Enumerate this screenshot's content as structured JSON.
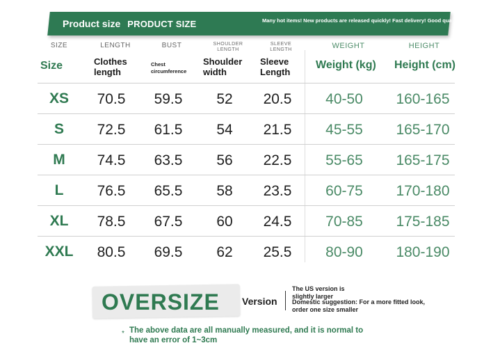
{
  "banner": {
    "title": "Product size",
    "subtitle": "PRODUCT SIZE",
    "note": "Many hot items! New products are released quickly! Fast delivery! Good quality! Keep improving!"
  },
  "columns": [
    {
      "en": "SIZE",
      "label": "Size"
    },
    {
      "en": "LENGTH",
      "label": "Clothes length"
    },
    {
      "en": "BUST",
      "label": "Chest circumference"
    },
    {
      "en": "SHOULDER LENGTH",
      "label": "Shoulder width"
    },
    {
      "en": "SLEEVE LENGTH",
      "label": "Sleeve Length"
    },
    {
      "en": "WEIGHT",
      "label": "Weight (kg)"
    },
    {
      "en": "HEIGHT",
      "label": "Height (cm)"
    }
  ],
  "rows": [
    {
      "size": "XS",
      "length": "70.5",
      "bust": "59.5",
      "shoulder": "52",
      "sleeve": "20.5",
      "weight": "40-50",
      "height": "160-165"
    },
    {
      "size": "S",
      "length": "72.5",
      "bust": "61.5",
      "shoulder": "54",
      "sleeve": "21.5",
      "weight": "45-55",
      "height": "165-170"
    },
    {
      "size": "M",
      "length": "74.5",
      "bust": "63.5",
      "shoulder": "56",
      "sleeve": "22.5",
      "weight": "55-65",
      "height": "165-175"
    },
    {
      "size": "L",
      "length": "76.5",
      "bust": "65.5",
      "shoulder": "58",
      "sleeve": "23.5",
      "weight": "60-75",
      "height": "170-180"
    },
    {
      "size": "XL",
      "length": "78.5",
      "bust": "67.5",
      "shoulder": "60",
      "sleeve": "24.5",
      "weight": "70-85",
      "height": "175-185"
    },
    {
      "size": "XXL",
      "length": "80.5",
      "bust": "69.5",
      "shoulder": "62",
      "sleeve": "25.5",
      "weight": "80-90",
      "height": "180-190"
    }
  ],
  "bottom": {
    "oversize": "OVERSIZE",
    "version": "Version",
    "us_note": "The US version is slightly larger",
    "suggestion": "Domestic suggestion: For a more fitted look, order one size smaller",
    "star": "*",
    "footnote": "The above data are all manually measured, and it is normal to have an error of 1~3cm"
  },
  "colors": {
    "accent_green": "#2f7a51",
    "banner_green": "#2e7a53",
    "value_green": "#4a8a66"
  }
}
